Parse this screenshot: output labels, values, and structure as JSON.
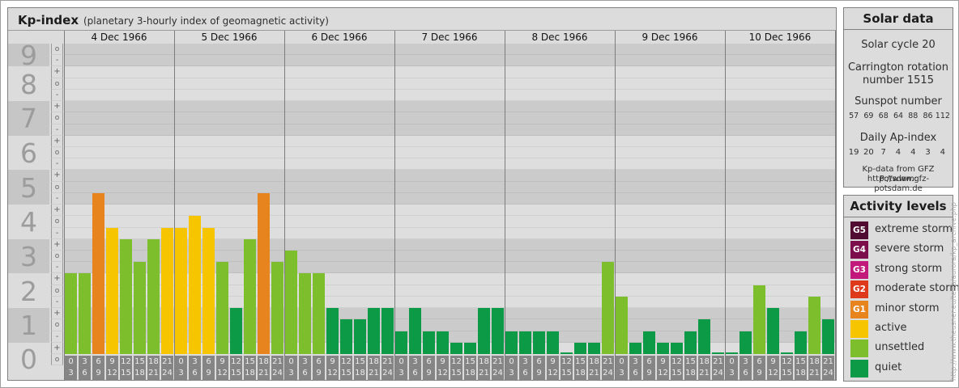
{
  "header": {
    "title": "Kp-index",
    "subtitle": "(planetary 3-hourly index of geomagnetic activity)"
  },
  "y_axis": {
    "kp_integers": [
      "9",
      "8",
      "7",
      "6",
      "5",
      "4",
      "3",
      "2",
      "1",
      "0"
    ],
    "sub_labels_kp9": [
      "o",
      "-"
    ],
    "sub_labels_default": [
      "+",
      "o",
      "-"
    ],
    "sub_labels_kp0": [
      "+",
      "o"
    ]
  },
  "time_slots": [
    [
      "0",
      "3"
    ],
    [
      "3",
      "6"
    ],
    [
      "6",
      "9"
    ],
    [
      "9",
      "12"
    ],
    [
      "12",
      "15"
    ],
    [
      "15",
      "18"
    ],
    [
      "18",
      "21"
    ],
    [
      "21",
      "24"
    ]
  ],
  "chart_data": {
    "type": "bar",
    "title": "Kp-index (planetary 3-hourly index of geomagnetic activity)",
    "ylabel": "Kp",
    "ylim": [
      0,
      9
    ],
    "x_interval_hours": 3,
    "days": [
      {
        "date": "4 Dec 1966",
        "kp": [
          "2+",
          "2+",
          "5-",
          "4-",
          "3+",
          "3-",
          "3+",
          "4-"
        ]
      },
      {
        "date": "5 Dec 1966",
        "kp": [
          "4-",
          "4o",
          "4-",
          "3-",
          "1+",
          "3+",
          "5-",
          "3-"
        ]
      },
      {
        "date": "6 Dec 1966",
        "kp": [
          "3o",
          "2+",
          "2+",
          "1+",
          "1o",
          "1o",
          "1+",
          "1+"
        ]
      },
      {
        "date": "7 Dec 1966",
        "kp": [
          "1-",
          "1+",
          "1-",
          "1-",
          "0+",
          "0+",
          "1+",
          "1+"
        ]
      },
      {
        "date": "8 Dec 1966",
        "kp": [
          "1-",
          "1-",
          "1-",
          "1-",
          "0o",
          "0+",
          "0+",
          "3-"
        ]
      },
      {
        "date": "9 Dec 1966",
        "kp": [
          "2-",
          "0+",
          "1-",
          "0+",
          "0+",
          "1-",
          "1o",
          "0o"
        ]
      },
      {
        "date": "10 Dec 1966",
        "kp": [
          "0o",
          "1-",
          "2o",
          "1+",
          "0o",
          "1-",
          "2-",
          "1o"
        ]
      }
    ]
  },
  "solar": {
    "title": "Solar data",
    "cycle": "Solar cycle 20",
    "carrington": "Carrington rotation number 1515",
    "sunspot_title": "Sunspot number",
    "sunspot_values": [
      "57",
      "69",
      "68",
      "64",
      "88",
      "86",
      "112"
    ],
    "ap_title": "Daily Ap-index",
    "ap_values": [
      "19",
      "20",
      "7",
      "4",
      "4",
      "3",
      "4"
    ],
    "source1": "Kp-data from GFZ Potsdam:",
    "source2": "http://www.gfz-potsdam.de"
  },
  "legend": {
    "title": "Activity levels",
    "items": [
      {
        "badge": "G5",
        "label": "extreme storm",
        "color": "#500c31"
      },
      {
        "badge": "G4",
        "label": "severe storm",
        "color": "#7c0f4b"
      },
      {
        "badge": "G3",
        "label": "strong storm",
        "color": "#c2187c"
      },
      {
        "badge": "G2",
        "label": "moderate storm",
        "color": "#df391b"
      },
      {
        "badge": "G1",
        "label": "minor storm",
        "color": "#e8841d"
      },
      {
        "badge": "",
        "label": "active",
        "color": "#f6c500"
      },
      {
        "badge": "",
        "label": "unsettled",
        "color": "#7cbe2b"
      },
      {
        "badge": "",
        "label": "quiet",
        "color": "#0c9a47"
      }
    ]
  },
  "watermark": "http://www.theusner.eu/terra/aurora/kp_archive.php",
  "style_colors": {
    "band_dark": "#cbcbcb",
    "band_light": "#dedede",
    "axis_band_dark": "#c6c6c6",
    "axis_band_light": "#dcdcdc"
  }
}
